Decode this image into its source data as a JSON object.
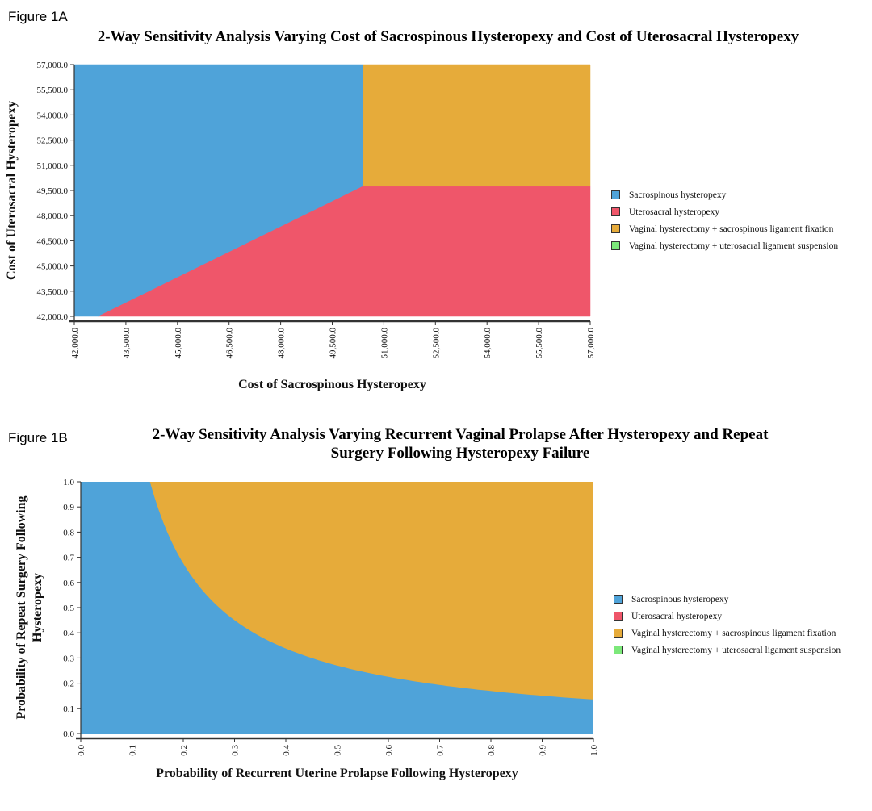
{
  "figA": {
    "label": "Figure 1A",
    "title": "2-Way Sensitivity Analysis Varying Cost of Sacrospinous Hysteropexy and Cost of Uterosacral Hysteropexy"
  },
  "figB": {
    "label": "Figure 1B",
    "title_line1": "2-Way Sensitivity Analysis Varying Recurrent Vaginal Prolapse After Hysteropexy and Repeat",
    "title_line2": "Surgery Following Hysteropexy Failure"
  },
  "legend": [
    {
      "label": "Sacrospinous hysteropexy",
      "color": "#4fa3d9"
    },
    {
      "label": "Uterosacral hysteropexy",
      "color": "#ef566a"
    },
    {
      "label": "Vaginal hysterectomy + sacrospinous ligament fixation",
      "color": "#e6ab3a"
    },
    {
      "label": "Vaginal hysterectomy + uterosacral ligament suspension",
      "color": "#7ce87a"
    }
  ],
  "chart_data": [
    {
      "type": "heatmap",
      "title": "2-Way Sensitivity Analysis Varying Cost of Sacrospinous Hysteropexy and Cost of Uterosacral Hysteropexy",
      "xlabel": "Cost of Sacrospinous Hysteropexy",
      "ylabel": "Cost of Uterosacral Hysteropexy",
      "xlim": [
        42000,
        57000
      ],
      "ylim": [
        42000,
        57000
      ],
      "xticks": [
        "42,000.0",
        "43,500.0",
        "45,000.0",
        "46,500.0",
        "48,000.0",
        "49,500.0",
        "51,000.0",
        "52,500.0",
        "54,000.0",
        "55,500.0",
        "57,000.0"
      ],
      "yticks": [
        "42,000.0",
        "43,500.0",
        "45,000.0",
        "46,500.0",
        "48,000.0",
        "49,500.0",
        "51,000.0",
        "52,500.0",
        "54,000.0",
        "55,500.0",
        "57,000.0"
      ],
      "legend_position": "right",
      "regions": [
        {
          "name": "Sacrospinous hysteropexy",
          "color": "#4fa3d9",
          "polygon": [
            [
              42000,
              42000
            ],
            [
              42700,
              42000
            ],
            [
              50400,
              49750
            ],
            [
              50400,
              57000
            ],
            [
              42000,
              57000
            ]
          ]
        },
        {
          "name": "Uterosacral hysteropexy",
          "color": "#ef566a",
          "polygon": [
            [
              42700,
              42000
            ],
            [
              57000,
              42000
            ],
            [
              57000,
              49750
            ],
            [
              50400,
              49750
            ]
          ]
        },
        {
          "name": "Vaginal hysterectomy + sacrospinous ligament fixation",
          "color": "#e6ab3a",
          "polygon": [
            [
              50400,
              49750
            ],
            [
              57000,
              49750
            ],
            [
              57000,
              57000
            ],
            [
              50400,
              57000
            ]
          ]
        }
      ]
    },
    {
      "type": "heatmap",
      "title": "2-Way Sensitivity Analysis Varying Recurrent Vaginal Prolapse After Hysteropexy and Repeat Surgery Following Hysteropexy Failure",
      "xlabel": "Probability of Recurrent Uterine Prolapse Following Hysteropexy",
      "ylabel": "Probability of Repeat Surgery Following Hysteropexy",
      "xlim": [
        0.0,
        1.0
      ],
      "ylim": [
        0.0,
        1.0
      ],
      "xticks": [
        "0.0",
        "0.1",
        "0.2",
        "0.3",
        "0.4",
        "0.5",
        "0.6",
        "0.7",
        "0.8",
        "0.9",
        "1.0"
      ],
      "yticks": [
        "0.0",
        "0.1",
        "0.2",
        "0.3",
        "0.4",
        "0.5",
        "0.6",
        "0.7",
        "0.8",
        "0.9",
        "1.0"
      ],
      "legend_position": "right",
      "boundary": {
        "description": "x*y = 0.135",
        "points": [
          [
            0.15,
            1.0
          ],
          [
            0.2,
            0.675
          ],
          [
            0.3,
            0.45
          ],
          [
            0.4,
            0.3375
          ],
          [
            0.5,
            0.27
          ],
          [
            0.6,
            0.225
          ],
          [
            0.7,
            0.193
          ],
          [
            0.8,
            0.169
          ],
          [
            0.9,
            0.15
          ],
          [
            1.0,
            0.135
          ]
        ]
      },
      "regions": [
        {
          "name": "Sacrospinous hysteropexy",
          "color": "#4fa3d9",
          "side": "below boundary"
        },
        {
          "name": "Vaginal hysterectomy + sacrospinous ligament fixation",
          "color": "#e6ab3a",
          "side": "above boundary"
        }
      ]
    }
  ]
}
